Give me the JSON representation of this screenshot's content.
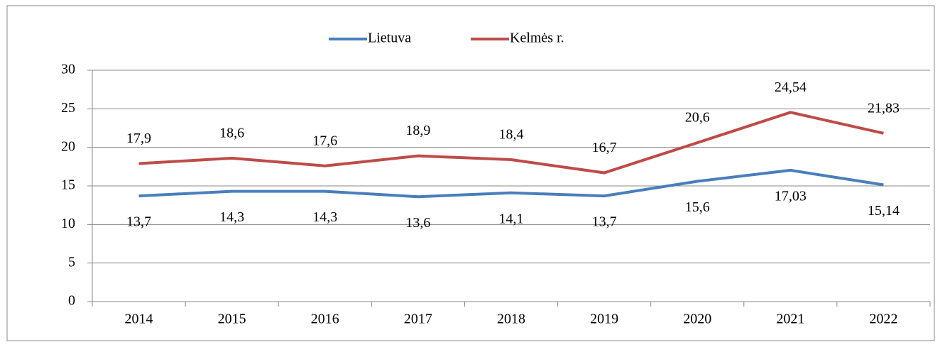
{
  "chart_data": {
    "type": "line",
    "categories": [
      "2014",
      "2015",
      "2016",
      "2017",
      "2018",
      "2019",
      "2020",
      "2021",
      "2022"
    ],
    "series": [
      {
        "name": "Lietuva",
        "color": "#4a7ebb",
        "values": [
          13.7,
          14.3,
          14.3,
          13.6,
          14.1,
          13.7,
          15.6,
          17.03,
          15.14
        ],
        "value_labels": [
          "13,7",
          "14,3",
          "14,3",
          "13,6",
          "14,1",
          "13,7",
          "15,6",
          "17,03",
          "15,14"
        ]
      },
      {
        "name": "Kelmės r.",
        "color": "#be4b48",
        "values": [
          17.9,
          18.6,
          17.6,
          18.9,
          18.4,
          16.7,
          20.6,
          24.54,
          21.83
        ],
        "value_labels": [
          "17,9",
          "18,6",
          "17,6",
          "18,9",
          "18,4",
          "16,7",
          "20,6",
          "24,54",
          "21,83"
        ]
      }
    ],
    "ylim": [
      0,
      30
    ],
    "yticks": [
      0,
      5,
      10,
      15,
      20,
      25,
      30
    ],
    "grid": true,
    "legend": "top"
  }
}
